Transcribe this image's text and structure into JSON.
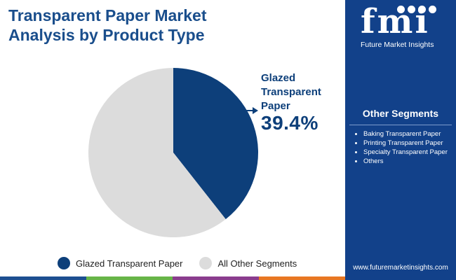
{
  "title_lines": [
    "Transparent Paper Market",
    "Analysis by Product Type"
  ],
  "chart_data": {
    "type": "pie",
    "slices": [
      {
        "name": "Glazed Transparent Paper",
        "value": 39.4,
        "color": "#0d3f7a"
      },
      {
        "name": "All Other Segments",
        "value": 60.6,
        "color": "#dcdcdc"
      }
    ],
    "callout": {
      "label_lines": [
        "Glazed",
        "Transparent",
        "Paper"
      ],
      "value": "39.4%"
    },
    "legend": [
      {
        "label": "Glazed Transparent Paper",
        "color": "#0d3f7a"
      },
      {
        "label": "All Other Segments",
        "color": "#dcdcdc"
      }
    ],
    "legend_position": "bottom"
  },
  "sidebar": {
    "logo": "fmi",
    "brand": "Future Market Insights",
    "segments_title": "Other Segments",
    "segments": [
      "Baking Transparent Paper",
      "Printing Transparent Paper",
      "Specialty Transparent Paper",
      "Others"
    ],
    "website": "www.futuremarketinsights.com"
  },
  "bottom_bar_colors": [
    "#1d4f91",
    "#67b547",
    "#8a3c8e",
    "#e87722"
  ]
}
